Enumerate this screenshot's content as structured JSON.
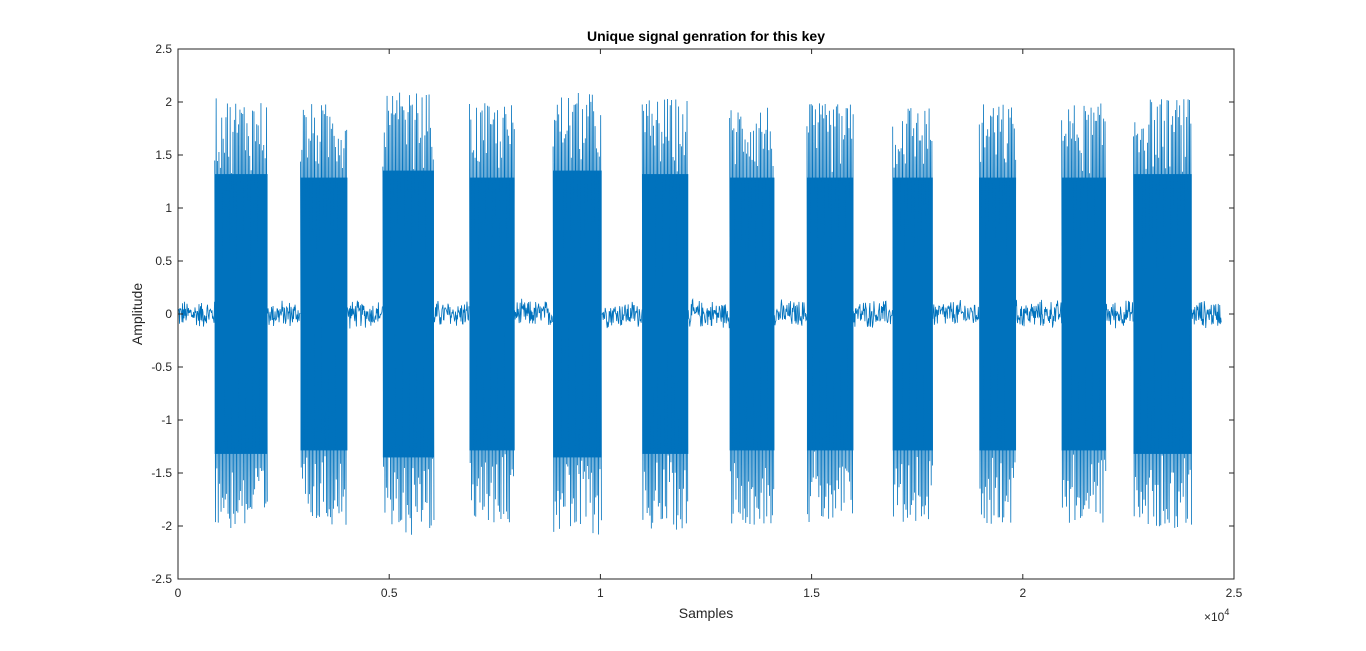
{
  "chart_data": {
    "type": "line",
    "title": "Unique signal genration for this key",
    "xlabel": "Samples",
    "ylabel": "Amplitude",
    "xlim": [
      0,
      25000
    ],
    "ylim": [
      -2.5,
      2.5
    ],
    "x_ticks": [
      0,
      5000,
      10000,
      15000,
      20000,
      25000
    ],
    "x_tick_labels": [
      "0",
      "0.5",
      "1",
      "1.5",
      "2",
      "2.5"
    ],
    "x_exponent_label": "×10",
    "x_exponent_power": "4",
    "y_ticks": [
      -2.5,
      -2,
      -1.5,
      -1,
      -0.5,
      0,
      0.5,
      1,
      1.5,
      2,
      2.5
    ],
    "y_tick_labels": [
      "-2.5",
      "-2",
      "-1.5",
      "-1",
      "-0.5",
      "0",
      "0.5",
      "1",
      "1.5",
      "2",
      "2.5"
    ],
    "grid": false,
    "series": [
      {
        "color": "#0072BD",
        "signal_extent": [
          0,
          24700
        ],
        "noise_amplitude": 0.15,
        "bursts": [
          {
            "start": 870,
            "end": 2120,
            "peak": 2.0
          },
          {
            "start": 2900,
            "end": 4010,
            "peak": 1.95
          },
          {
            "start": 4850,
            "end": 6060,
            "peak": 2.05
          },
          {
            "start": 6900,
            "end": 7970,
            "peak": 1.95
          },
          {
            "start": 8880,
            "end": 10030,
            "peak": 2.05
          },
          {
            "start": 10990,
            "end": 12080,
            "peak": 2.0
          },
          {
            "start": 13060,
            "end": 14120,
            "peak": 1.95
          },
          {
            "start": 14890,
            "end": 15990,
            "peak": 1.95
          },
          {
            "start": 16920,
            "end": 17870,
            "peak": 1.95
          },
          {
            "start": 18970,
            "end": 19840,
            "peak": 1.95
          },
          {
            "start": 20920,
            "end": 21970,
            "peak": 1.95
          },
          {
            "start": 22620,
            "end": 24000,
            "peak": 2.0
          }
        ]
      }
    ]
  }
}
